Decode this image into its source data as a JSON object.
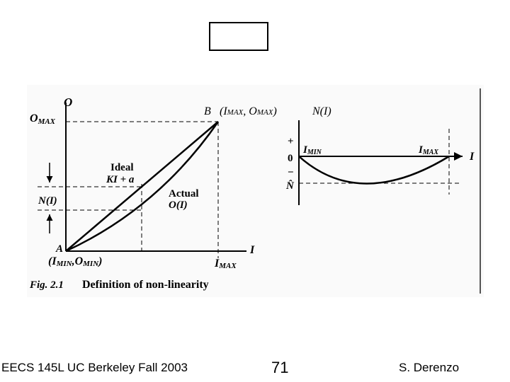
{
  "footer": {
    "course": "EECS 145L UC Berkeley Fall 2003",
    "page_number": "71",
    "author": "S. Derenzo"
  },
  "figure": {
    "caption_prefix": "Fig. 2.1",
    "caption_text": "Definition of non-linearity",
    "left_plot": {
      "y_axis_label": "O",
      "x_axis_label": "I",
      "omax_label": "O",
      "omax_sub": "MAX",
      "n_label": "N(I)",
      "point_a": "A",
      "point_a_coord_1": "(I",
      "point_a_coord_1_sub": "MIN",
      "point_a_coord_2": ",O",
      "point_a_coord_2_sub": "MIN",
      "point_a_coord_3": ")",
      "point_b": "B",
      "point_b_coord_1": "(I",
      "point_b_coord_1_sub": "MAX",
      "point_b_coord_2": ", O",
      "point_b_coord_2_sub": "MAX",
      "point_b_coord_3": ")",
      "imax_label": "I",
      "imax_sub": "MAX",
      "ideal_label": "Ideal",
      "ideal_eq": "KI + a",
      "actual_label": "Actual",
      "actual_eq": "O(I)"
    },
    "right_plot": {
      "title": "N(I)",
      "plus": "+",
      "zero": "0",
      "minus": "−",
      "n_hat": "N̂",
      "imin_label": "I",
      "imin_sub": "MIN",
      "imax_label": "I",
      "imax_sub": "MAX",
      "x_axis_label": "I"
    }
  }
}
